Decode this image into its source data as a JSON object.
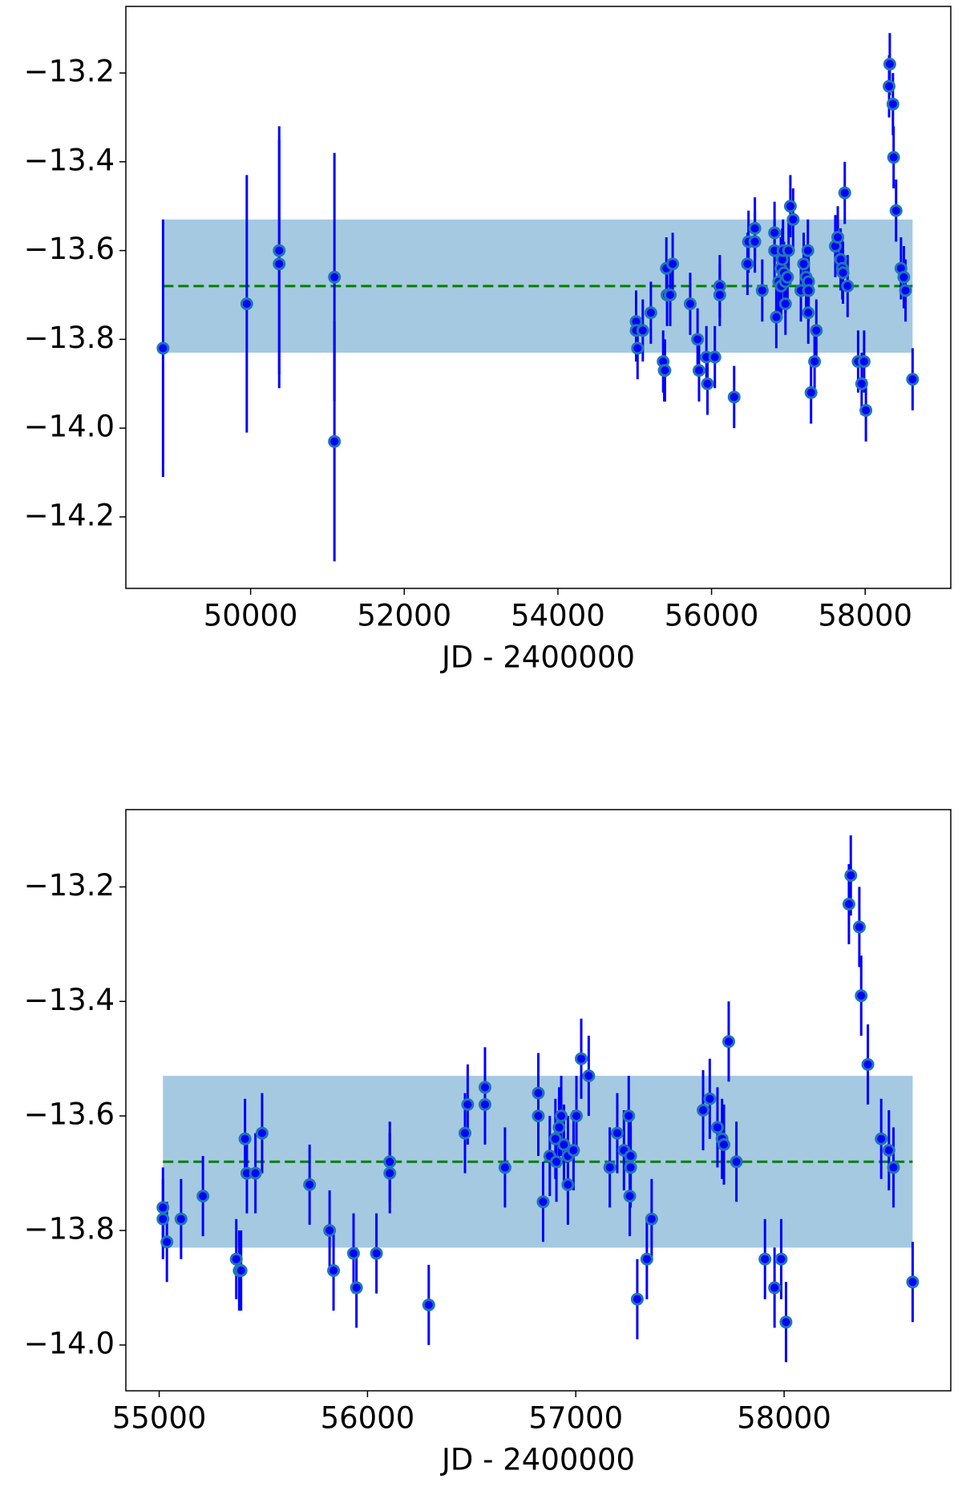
{
  "chart_data": [
    {
      "type": "errorbar",
      "x_label": "JD - 2400000",
      "x": [
        48860,
        49950,
        50372,
        50372,
        51091,
        51091,
        55018,
        55018,
        55037,
        55105,
        55210,
        55370,
        55384,
        55393,
        55412,
        55421,
        55462,
        55494,
        55722,
        55818,
        55837,
        55933,
        55947,
        56043,
        56107,
        56107,
        56294,
        56468,
        56481,
        56564,
        56564,
        56660,
        56820,
        56820,
        56843,
        56875,
        56902,
        56907,
        56920,
        56930,
        56943,
        56962,
        56962,
        56989,
        57003,
        57026,
        57062,
        57163,
        57199,
        57231,
        57254,
        57263,
        57263,
        57259,
        57295,
        57341,
        57364,
        57611,
        57643,
        57680,
        57702,
        57711,
        57734,
        57771,
        57908,
        57954,
        57986,
        58009,
        58311,
        58320,
        58361,
        58370,
        58402,
        58466,
        58503,
        58525,
        58617
      ],
      "values": [
        -13.82,
        -13.72,
        -13.6,
        -13.63,
        -13.66,
        -14.03,
        -13.76,
        -13.78,
        -13.82,
        -13.78,
        -13.74,
        -13.85,
        -13.87,
        -13.87,
        -13.64,
        -13.7,
        -13.7,
        -13.63,
        -13.72,
        -13.8,
        -13.87,
        -13.84,
        -13.9,
        -13.84,
        -13.68,
        -13.7,
        -13.93,
        -13.63,
        -13.58,
        -13.55,
        -13.58,
        -13.69,
        -13.56,
        -13.6,
        -13.75,
        -13.67,
        -13.64,
        -13.68,
        -13.62,
        -13.6,
        -13.65,
        -13.67,
        -13.72,
        -13.66,
        -13.6,
        -13.5,
        -13.53,
        -13.69,
        -13.63,
        -13.66,
        -13.6,
        -13.67,
        -13.69,
        -13.74,
        -13.92,
        -13.85,
        -13.78,
        -13.59,
        -13.57,
        -13.62,
        -13.64,
        -13.65,
        -13.47,
        -13.68,
        -13.85,
        -13.9,
        -13.85,
        -13.96,
        -13.23,
        -13.18,
        -13.27,
        -13.39,
        -13.51,
        -13.64,
        -13.66,
        -13.69,
        -13.89
      ],
      "errors": [
        0.29,
        0.29,
        0.28,
        0.28,
        0.28,
        0.27,
        0.07,
        0.07,
        0.07,
        0.07,
        0.07,
        0.07,
        0.07,
        0.07,
        0.07,
        0.07,
        0.07,
        0.07,
        0.07,
        0.07,
        0.07,
        0.07,
        0.07,
        0.07,
        0.07,
        0.07,
        0.07,
        0.07,
        0.07,
        0.07,
        0.07,
        0.07,
        0.07,
        0.07,
        0.07,
        0.07,
        0.07,
        0.07,
        0.07,
        0.07,
        0.07,
        0.07,
        0.07,
        0.07,
        0.07,
        0.07,
        0.07,
        0.07,
        0.07,
        0.07,
        0.07,
        0.07,
        0.07,
        0.07,
        0.07,
        0.07,
        0.07,
        0.07,
        0.07,
        0.07,
        0.07,
        0.07,
        0.07,
        0.07,
        0.07,
        0.07,
        0.07,
        0.07,
        0.07,
        0.07,
        0.07,
        0.07,
        0.07,
        0.07,
        0.07,
        0.07,
        0.07
      ],
      "mean": -13.68,
      "band": [
        -13.83,
        -13.53
      ],
      "color": "#0000ff",
      "edge_color": "#1f77b4",
      "mean_color": "#008000",
      "band_color": "#1f77b4",
      "xlim": [
        48376,
        59114
      ],
      "ylim": [
        -14.361,
        -13.05
      ],
      "xticks": [
        50000,
        52000,
        54000,
        56000,
        58000
      ],
      "yticks": [
        {
          "value": -13.2,
          "label": "−13.2"
        },
        {
          "value": -13.4,
          "label": "−13.4"
        },
        {
          "value": -13.6,
          "label": "−13.6"
        },
        {
          "value": -13.8,
          "label": "−13.8"
        },
        {
          "value": -14.0,
          "label": "−14.0"
        },
        {
          "value": -14.2,
          "label": "−14.2"
        }
      ]
    },
    {
      "type": "errorbar",
      "x_label": "JD - 2400000",
      "x": [
        55018,
        55018,
        55037,
        55105,
        55210,
        55370,
        55384,
        55393,
        55412,
        55421,
        55462,
        55494,
        55722,
        55818,
        55837,
        55933,
        55947,
        56043,
        56107,
        56107,
        56294,
        56468,
        56481,
        56564,
        56564,
        56660,
        56820,
        56820,
        56843,
        56875,
        56902,
        56907,
        56920,
        56930,
        56943,
        56962,
        56962,
        56989,
        57003,
        57026,
        57062,
        57163,
        57199,
        57231,
        57254,
        57263,
        57263,
        57259,
        57295,
        57341,
        57364,
        57611,
        57643,
        57680,
        57702,
        57711,
        57734,
        57771,
        57908,
        57954,
        57986,
        58009,
        58311,
        58320,
        58361,
        58370,
        58402,
        58466,
        58503,
        58525,
        58617
      ],
      "values": [
        -13.76,
        -13.78,
        -13.82,
        -13.78,
        -13.74,
        -13.85,
        -13.87,
        -13.87,
        -13.64,
        -13.7,
        -13.7,
        -13.63,
        -13.72,
        -13.8,
        -13.87,
        -13.84,
        -13.9,
        -13.84,
        -13.68,
        -13.7,
        -13.93,
        -13.63,
        -13.58,
        -13.55,
        -13.58,
        -13.69,
        -13.56,
        -13.6,
        -13.75,
        -13.67,
        -13.64,
        -13.68,
        -13.62,
        -13.6,
        -13.65,
        -13.67,
        -13.72,
        -13.66,
        -13.6,
        -13.5,
        -13.53,
        -13.69,
        -13.63,
        -13.66,
        -13.6,
        -13.67,
        -13.69,
        -13.74,
        -13.92,
        -13.85,
        -13.78,
        -13.59,
        -13.57,
        -13.62,
        -13.64,
        -13.65,
        -13.47,
        -13.68,
        -13.85,
        -13.9,
        -13.85,
        -13.96,
        -13.23,
        -13.18,
        -13.27,
        -13.39,
        -13.51,
        -13.64,
        -13.66,
        -13.69,
        -13.89
      ],
      "errors": [
        0.07,
        0.07,
        0.07,
        0.07,
        0.07,
        0.07,
        0.07,
        0.07,
        0.07,
        0.07,
        0.07,
        0.07,
        0.07,
        0.07,
        0.07,
        0.07,
        0.07,
        0.07,
        0.07,
        0.07,
        0.07,
        0.07,
        0.07,
        0.07,
        0.07,
        0.07,
        0.07,
        0.07,
        0.07,
        0.07,
        0.07,
        0.07,
        0.07,
        0.07,
        0.07,
        0.07,
        0.07,
        0.07,
        0.07,
        0.07,
        0.07,
        0.07,
        0.07,
        0.07,
        0.07,
        0.07,
        0.07,
        0.07,
        0.07,
        0.07,
        0.07,
        0.07,
        0.07,
        0.07,
        0.07,
        0.07,
        0.07,
        0.07,
        0.07,
        0.07,
        0.07,
        0.07,
        0.07,
        0.07,
        0.07,
        0.07,
        0.07,
        0.07,
        0.07,
        0.07,
        0.07
      ],
      "mean": -13.68,
      "band": [
        -13.83,
        -13.53
      ],
      "color": "#0000ff",
      "edge_color": "#1f77b4",
      "mean_color": "#008000",
      "band_color": "#1f77b4",
      "xlim": [
        54840,
        58800
      ],
      "ylim": [
        -14.08,
        -13.065
      ],
      "xticks": [
        55000,
        56000,
        57000,
        58000
      ],
      "yticks": [
        {
          "value": -13.2,
          "label": "−13.2"
        },
        {
          "value": -13.4,
          "label": "−13.4"
        },
        {
          "value": -13.6,
          "label": "−13.6"
        },
        {
          "value": -13.8,
          "label": "−13.8"
        },
        {
          "value": -14.0,
          "label": "−14.0"
        }
      ]
    }
  ]
}
